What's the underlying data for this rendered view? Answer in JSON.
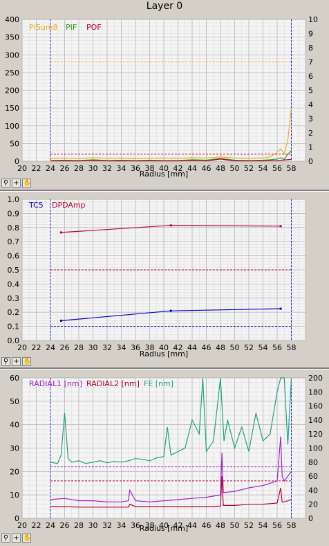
{
  "title": "Layer 0",
  "x_label": "Radius [mm]",
  "tools": {
    "zoom": "zoom-icon",
    "pan": "crosshair-icon",
    "hand": "hand-icon"
  },
  "chart_data": [
    {
      "type": "line",
      "xlim": [
        20,
        60
      ],
      "ylim": [
        0,
        400
      ],
      "y2lim": [
        0,
        10
      ],
      "x_ticks": [
        20,
        22,
        24,
        26,
        28,
        30,
        32,
        34,
        36,
        38,
        40,
        42,
        44,
        46,
        48,
        50,
        52,
        54,
        56,
        58
      ],
      "y_ticks": [
        0,
        50,
        100,
        150,
        200,
        250,
        300,
        350,
        400
      ],
      "y2_ticks": [
        0,
        1,
        2,
        3,
        4,
        5,
        6,
        7,
        8,
        9,
        10
      ],
      "xlabel": "Radius [mm]",
      "legend": [
        "PISum8",
        "PIF",
        "POF"
      ],
      "colors": {
        "PISum8": "#e8b020",
        "PIF": "#30a020",
        "POF": "#c00030"
      },
      "vlines": [
        24,
        58
      ],
      "hlines": [
        {
          "axis": "y",
          "value": 280,
          "color": "#e8b020"
        },
        {
          "axis": "y",
          "value": 20,
          "color": "#c00030"
        }
      ],
      "series": [
        {
          "name": "PISum8",
          "axis": "y",
          "x": [
            24,
            26,
            28,
            30,
            32,
            34,
            36,
            38,
            40,
            42,
            44,
            46,
            48,
            50,
            52,
            54,
            55,
            56,
            56.5,
            57,
            57.5,
            58
          ],
          "values": [
            8,
            9,
            7,
            10,
            8,
            9,
            7,
            8,
            9,
            8,
            10,
            9,
            12,
            9,
            8,
            9,
            12,
            25,
            35,
            20,
            60,
            150
          ]
        },
        {
          "name": "PIF",
          "axis": "y",
          "x": [
            24,
            26,
            28,
            30,
            32,
            34,
            36,
            38,
            40,
            42,
            44,
            46,
            48,
            50,
            52,
            54,
            55,
            56,
            56.5,
            57,
            57.5,
            58
          ],
          "values": [
            2,
            3,
            2,
            4,
            2,
            3,
            2,
            3,
            2,
            2,
            4,
            3,
            8,
            3,
            2,
            3,
            4,
            6,
            10,
            5,
            20,
            30
          ]
        },
        {
          "name": "POF",
          "axis": "y",
          "x": [
            24,
            26,
            28,
            30,
            32,
            34,
            36,
            38,
            40,
            42,
            44,
            46,
            48,
            50,
            52,
            54,
            56,
            58
          ],
          "values": [
            1,
            1,
            1,
            2,
            1,
            1,
            1,
            1,
            1,
            1,
            2,
            1,
            6,
            1,
            1,
            1,
            2,
            5
          ]
        }
      ]
    },
    {
      "type": "line",
      "xlim": [
        20,
        60
      ],
      "ylim": [
        0,
        1
      ],
      "x_ticks": [
        20,
        22,
        24,
        26,
        28,
        30,
        32,
        34,
        36,
        38,
        40,
        42,
        44,
        46,
        48,
        50,
        52,
        54,
        56,
        58
      ],
      "y_ticks": [
        "0.0",
        "0.1",
        "0.2",
        "0.3",
        "0.4",
        "0.5",
        "0.6",
        "0.7",
        "0.8",
        "0.9",
        "1.0"
      ],
      "xlabel": "Radius [mm]",
      "legend": [
        "TC5",
        "DPDAmp"
      ],
      "colors": {
        "TC5": "#0000d0",
        "DPDAmp": "#c00030"
      },
      "vlines": [
        24,
        58
      ],
      "hlines": [
        {
          "axis": "y",
          "value": 0.5,
          "color": "#c00030"
        },
        {
          "axis": "y",
          "value": 0.1,
          "color": "#0000d0"
        }
      ],
      "series": [
        {
          "name": "TC5",
          "axis": "y",
          "x": [
            25.5,
            41,
            56.5
          ],
          "values": [
            0.14,
            0.21,
            0.225
          ]
        },
        {
          "name": "DPDAmp",
          "axis": "y",
          "x": [
            25.5,
            41,
            56.5
          ],
          "values": [
            0.765,
            0.815,
            0.81
          ]
        }
      ]
    },
    {
      "type": "line",
      "xlim": [
        20,
        60
      ],
      "ylim": [
        0,
        60
      ],
      "y2lim": [
        0,
        200
      ],
      "x_ticks": [
        20,
        22,
        24,
        26,
        28,
        30,
        32,
        34,
        36,
        38,
        40,
        42,
        44,
        46,
        48,
        50,
        52,
        54,
        56,
        58
      ],
      "y_ticks": [
        0,
        10,
        20,
        30,
        40,
        50,
        60
      ],
      "y2_ticks": [
        0,
        20,
        40,
        60,
        80,
        100,
        120,
        140,
        160,
        180,
        200
      ],
      "xlabel": "Radius [mm]",
      "legend": [
        "RADIAL1 [nm]",
        "RADIAL2 [nm]",
        "FE [nm]"
      ],
      "colors": {
        "RADIAL1 [nm]": "#a020d0",
        "RADIAL2 [nm]": "#b00030",
        "FE [nm]": "#20a080"
      },
      "vlines": [
        24,
        58
      ],
      "hlines": [
        {
          "axis": "y",
          "value": 22,
          "color": "#a020d0"
        },
        {
          "axis": "y",
          "value": 16,
          "color": "#c00030"
        }
      ],
      "series": [
        {
          "name": "FE [nm]",
          "axis": "y2",
          "x": [
            24,
            25,
            25.5,
            26,
            26.5,
            27,
            28,
            29,
            30,
            31,
            32,
            33,
            34,
            35,
            36,
            37,
            38,
            39,
            40,
            40.5,
            41,
            42,
            43,
            44,
            45,
            45.5,
            46,
            47,
            48,
            48.5,
            49,
            50,
            51,
            52,
            53,
            54,
            55,
            56,
            56.5,
            57,
            57.5,
            58
          ],
          "values": [
            80,
            78,
            90,
            150,
            85,
            80,
            82,
            78,
            80,
            82,
            79,
            81,
            80,
            82,
            85,
            84,
            82,
            86,
            88,
            130,
            90,
            95,
            100,
            140,
            120,
            200,
            95,
            110,
            200,
            110,
            140,
            100,
            130,
            95,
            150,
            110,
            120,
            180,
            200,
            200,
            105,
            200
          ]
        },
        {
          "name": "RADIAL1 [nm]",
          "axis": "y",
          "x": [
            24,
            26,
            28,
            30,
            32,
            34,
            35,
            35.2,
            36,
            38,
            40,
            42,
            44,
            46,
            48,
            48.2,
            48.4,
            50,
            52,
            54,
            56,
            56.5,
            56.7,
            57,
            58
          ],
          "values": [
            8,
            8.5,
            7.5,
            7.5,
            7,
            7,
            7.5,
            12,
            7.5,
            7,
            7.5,
            8,
            8.5,
            9,
            10,
            28,
            11,
            11.5,
            13,
            14,
            16,
            35,
            18,
            16,
            20
          ]
        },
        {
          "name": "RADIAL2 [nm]",
          "axis": "y",
          "x": [
            24,
            26,
            28,
            30,
            32,
            34,
            35,
            35.2,
            36,
            38,
            40,
            42,
            44,
            46,
            48,
            48.2,
            48.4,
            50,
            52,
            54,
            56,
            56.5,
            56.7,
            57,
            58
          ],
          "values": [
            5,
            5,
            4.8,
            4.8,
            4.8,
            4.8,
            4.8,
            6,
            5,
            5,
            5,
            5,
            5,
            5,
            5.2,
            18,
            5.5,
            5.5,
            6,
            6,
            6.5,
            13,
            7,
            7,
            8
          ]
        }
      ]
    }
  ]
}
